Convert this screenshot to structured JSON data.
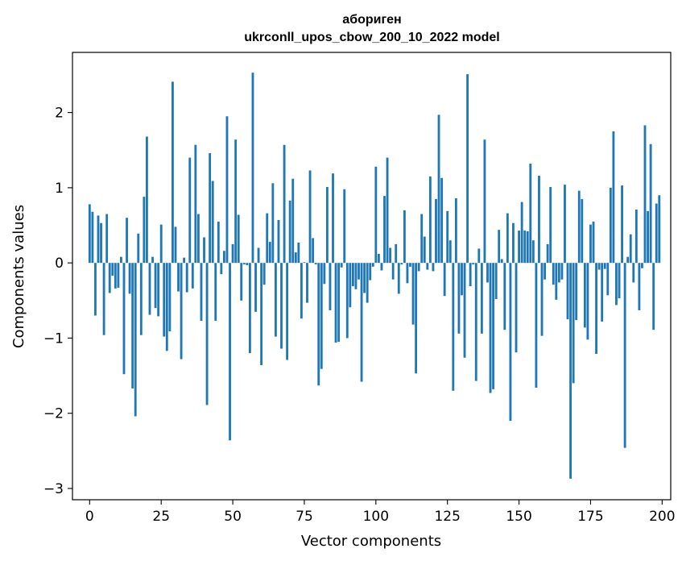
{
  "chart_data": {
    "type": "bar",
    "title": "абориген",
    "subtitle": "ukrconll_upos_cbow_200_10_2022 model",
    "xlabel": "Vector components",
    "ylabel": "Components values",
    "xlim": [
      -6,
      203
    ],
    "ylim": [
      -3.15,
      2.8
    ],
    "x_ticks": [
      0,
      25,
      50,
      75,
      100,
      125,
      150,
      175,
      200
    ],
    "y_ticks": [
      -3,
      -2,
      -1,
      0,
      1,
      2
    ],
    "x_tick_labels": [
      "0",
      "25",
      "50",
      "75",
      "100",
      "125",
      "150",
      "175",
      "200"
    ],
    "y_tick_labels": [
      "−3",
      "−2",
      "−1",
      "0",
      "1",
      "2"
    ],
    "bar_color": "#1f77b4",
    "grid": false,
    "values": [
      0.78,
      0.68,
      -0.7,
      0.63,
      0.53,
      -0.96,
      0.65,
      -0.4,
      -0.17,
      -0.34,
      -0.33,
      0.08,
      -1.48,
      0.6,
      -0.41,
      -1.67,
      -2.04,
      0.39,
      -0.96,
      0.88,
      1.68,
      -0.69,
      0.08,
      -0.6,
      -0.71,
      0.51,
      -0.98,
      -1.17,
      -0.91,
      2.41,
      0.48,
      -0.38,
      -1.28,
      0.07,
      -0.39,
      1.4,
      -0.34,
      1.57,
      0.65,
      -0.77,
      0.34,
      -1.89,
      1.46,
      1.09,
      -0.77,
      0.55,
      -0.15,
      0.16,
      1.95,
      -2.36,
      0.25,
      1.64,
      0.64,
      -0.5,
      -0.02,
      -0.03,
      -1.2,
      2.53,
      -0.65,
      0.2,
      -1.36,
      -0.29,
      0.66,
      0.28,
      1.06,
      -0.98,
      0.57,
      -1.14,
      1.57,
      -1.29,
      0.83,
      1.12,
      0.14,
      0.27,
      -0.74,
      0.01,
      -0.53,
      1.23,
      0.33,
      -0.02,
      -1.63,
      -1.41,
      -0.28,
      1.01,
      -0.63,
      1.19,
      -1.06,
      -1.05,
      -0.06,
      0.98,
      -1.0,
      -0.59,
      -0.31,
      -0.35,
      -0.22,
      -1.58,
      -0.4,
      -0.53,
      -0.23,
      -0.05,
      1.28,
      0.12,
      -0.1,
      0.89,
      1.4,
      0.2,
      -0.22,
      0.25,
      -0.41,
      -0.02,
      0.7,
      -0.27,
      -0.05,
      -0.82,
      -1.47,
      -0.11,
      0.65,
      0.35,
      -0.09,
      1.15,
      -0.11,
      0.85,
      1.97,
      1.13,
      -0.44,
      0.69,
      0.3,
      -1.7,
      0.86,
      -0.94,
      -0.43,
      -1.26,
      2.51,
      -0.31,
      -0.02,
      -1.57,
      0.19,
      -0.94,
      1.64,
      -0.26,
      -1.73,
      -1.68,
      -0.48,
      0.44,
      0.05,
      -0.89,
      0.66,
      -2.1,
      0.53,
      -1.19,
      0.43,
      0.81,
      0.43,
      0.42,
      1.32,
      0.3,
      -1.66,
      1.16,
      -0.97,
      -0.22,
      0.25,
      1.01,
      -0.29,
      -0.49,
      -0.26,
      -0.22,
      1.04,
      -0.75,
      -2.87,
      -1.6,
      -0.76,
      0.96,
      0.85,
      -0.86,
      -1.02,
      0.51,
      0.55,
      -1.21,
      -0.09,
      -0.78,
      -0.08,
      -0.43,
      1.0,
      1.75,
      -0.56,
      -0.47,
      1.03,
      -2.46,
      0.08,
      0.38,
      -0.26,
      0.71,
      -0.63,
      -0.07,
      1.83,
      0.69,
      1.58,
      -0.89,
      0.79,
      0.9
    ]
  }
}
